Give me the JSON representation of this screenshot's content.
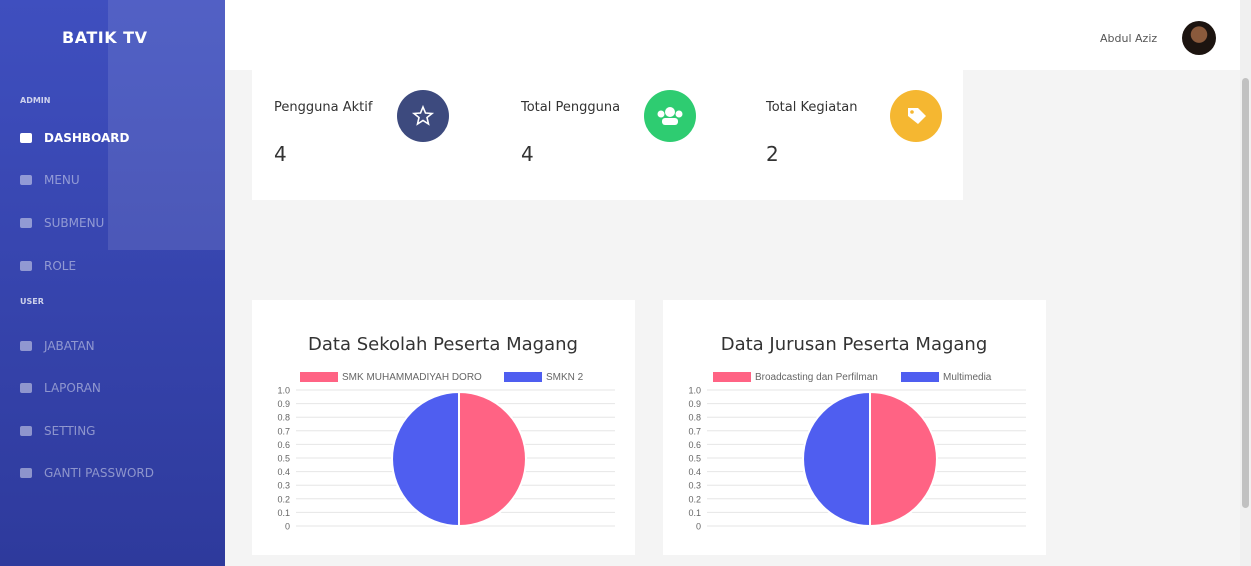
{
  "sidebar": {
    "brand": "BATIK TV",
    "sections": [
      {
        "title": "ADMIN",
        "items": [
          "DASHBOARD",
          "MENU",
          "SUBMENU",
          "ROLE"
        ]
      },
      {
        "title": "USER",
        "items": [
          "JABATAN",
          "LAPORAN",
          "SETTING",
          "GANTI PASSWORD"
        ]
      }
    ]
  },
  "header": {
    "user": "Abdul Aziz"
  },
  "stats": [
    {
      "label": "Pengguna Aktif",
      "value": 4
    },
    {
      "label": "Total Pengguna",
      "value": 4
    },
    {
      "label": "Total Kegiatan",
      "value": 2
    }
  ],
  "chart_data": [
    {
      "type": "pie",
      "title": "Data Sekolah Peserta Magang",
      "categories": [
        "SMK MUHAMMADIYAH DORO",
        "SMKN 2"
      ],
      "values": [
        1,
        1
      ],
      "colors": [
        "#ff6384",
        "#4f5ef0"
      ],
      "ylim": [
        0,
        1
      ],
      "yticks": [
        0,
        0.1,
        0.2,
        0.3,
        0.4,
        0.5,
        0.6,
        0.7,
        0.8,
        0.9,
        {
          "value": 1,
          "label": "1.0"
        }
      ],
      "grid": true
    },
    {
      "type": "pie",
      "title": "Data Jurusan Peserta Magang",
      "categories": [
        "Broadcasting dan Perfilman",
        "Multimedia"
      ],
      "values": [
        1,
        1
      ],
      "colors": [
        "#ff6384",
        "#4f5ef0"
      ],
      "ylim": [
        0,
        1
      ],
      "yticks": [
        0,
        0.1,
        0.2,
        0.3,
        0.4,
        0.5,
        0.6,
        0.7,
        0.8,
        0.9,
        {
          "value": 1,
          "label": "1.0"
        }
      ],
      "grid": true
    }
  ]
}
